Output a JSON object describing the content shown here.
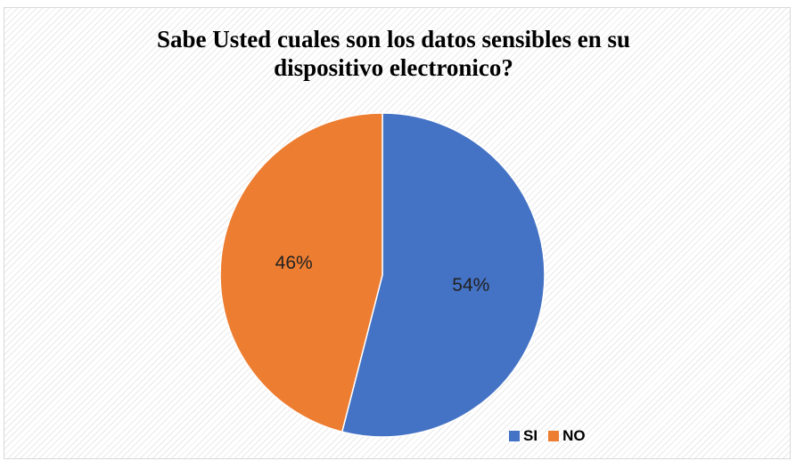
{
  "chart_data": {
    "type": "pie",
    "title_lines": [
      "Sabe Usted cuales son los datos sensibles en su",
      "dispositivo electronico?"
    ],
    "categories": [
      "SI",
      "NO"
    ],
    "values": [
      54,
      46
    ],
    "labels": [
      "54%",
      "46%"
    ],
    "colors": [
      "#4472C4",
      "#ED7D31"
    ],
    "legend_position": "bottom-right"
  }
}
